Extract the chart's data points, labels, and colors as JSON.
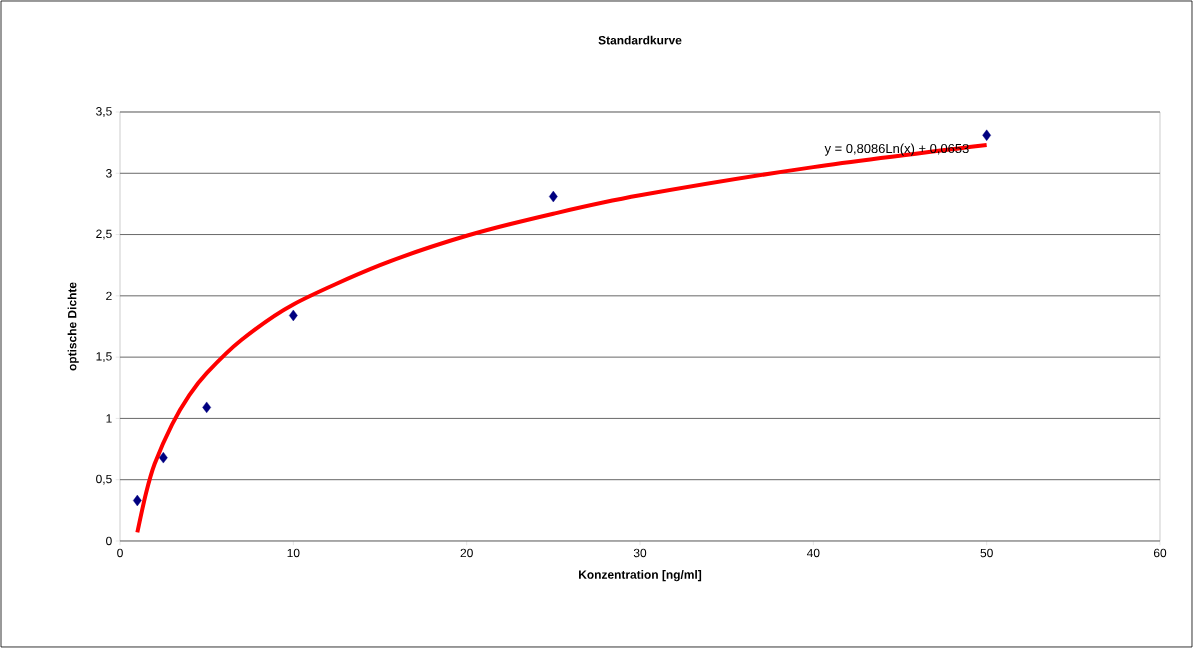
{
  "chart_data": {
    "type": "scatter",
    "title": "Standardkurve",
    "xlabel": "Konzentration [ng/ml]",
    "ylabel": "optische Dichte",
    "xlim": [
      0,
      60
    ],
    "ylim": [
      0,
      3.5
    ],
    "xticks": [
      0,
      10,
      20,
      30,
      40,
      50,
      60
    ],
    "yticks": [
      0,
      {
        "value": 0.5,
        "label": "0,5"
      },
      1,
      {
        "value": 1.5,
        "label": "1,5"
      },
      2,
      {
        "value": 2.5,
        "label": "2,5"
      },
      3,
      {
        "value": 3.5,
        "label": "3,5"
      }
    ],
    "grid": "y",
    "series": [
      {
        "marker": "diamond",
        "color": "#000080",
        "x": [
          1,
          2.5,
          5,
          10,
          25,
          50
        ],
        "values": [
          0.33,
          0.68,
          1.09,
          1.84,
          2.81,
          3.31
        ]
      },
      {
        "type": "line",
        "marker": "none",
        "color": "#ff0000",
        "x": [
          1,
          1.5,
          2,
          3,
          4,
          5,
          7,
          10,
          15,
          20,
          25,
          30,
          40,
          50
        ],
        "values": [
          0.07,
          0.39,
          0.63,
          0.95,
          1.19,
          1.37,
          1.64,
          1.93,
          2.25,
          2.49,
          2.67,
          2.82,
          3.05,
          3.23
        ]
      }
    ],
    "annotations": [
      "y = 0,8086Ln(x) + 0,0653"
    ]
  }
}
